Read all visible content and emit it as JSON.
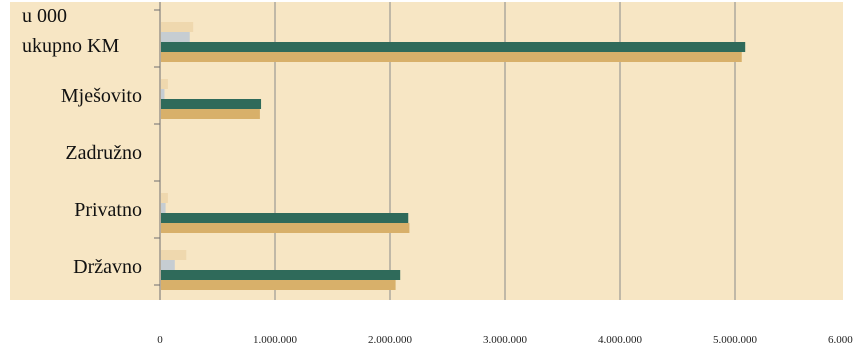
{
  "chart_data": {
    "type": "bar",
    "orientation": "horizontal",
    "title": "",
    "unit_label_line1": "u 000",
    "unit_label_line2": "ukupno KM",
    "categories": [
      "Državno",
      "Privatno",
      "Zadružno",
      "Mješovito",
      "ukupno KM"
    ],
    "x_tick_labels": [
      "0",
      "1.000.000",
      "2.000.000",
      "3.000.000",
      "4.000.000",
      "5.000.000",
      "6.000.000"
    ],
    "xlim": [
      0,
      6000000
    ],
    "grid": {
      "x": true,
      "y": false
    },
    "legend": "none",
    "series": [
      {
        "color": "#d8b06a",
        "values": [
          2040000,
          2160000,
          0,
          860000,
          5050000
        ]
      },
      {
        "color": "#2f6a5a",
        "values": [
          2080000,
          2150000,
          0,
          870000,
          5080000
        ]
      },
      {
        "color": "#c6cdd2",
        "values": [
          120000,
          40000,
          0,
          30000,
          250000
        ]
      },
      {
        "color": "#efd8ae",
        "values": [
          220000,
          60000,
          0,
          60000,
          280000
        ]
      }
    ],
    "colors": {
      "panel_background": "#f7e6c4",
      "gridline": "#8a8a8a",
      "axis": "#6f6f6f"
    }
  }
}
